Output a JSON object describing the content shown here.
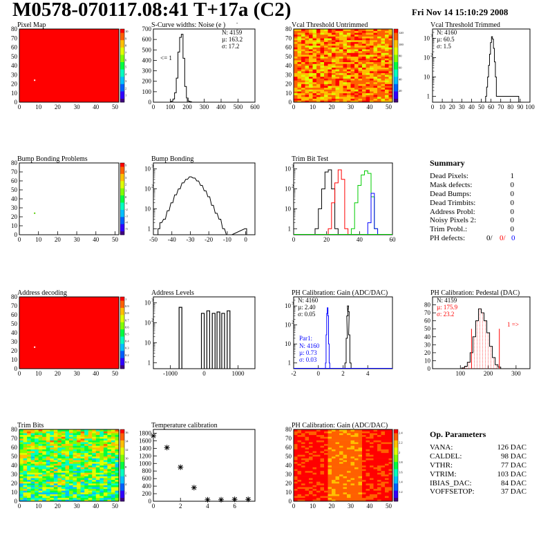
{
  "header": {
    "title": "M0578-070117.08:41 T+17a (C2)",
    "date": "Fri Nov 14 15:10:29 2008"
  },
  "colors": {
    "red": "#ff0000",
    "green": "#00cc00",
    "blue": "#0000ff"
  },
  "chart_data": [
    {
      "id": "pixel-map",
      "type": "heatmap",
      "title": "Pixel Map",
      "fill": "red",
      "xlim": [
        0,
        52
      ],
      "ylim": [
        0,
        80
      ],
      "xticks": [
        0,
        10,
        20,
        30,
        40,
        50
      ],
      "yticks": [
        0,
        10,
        20,
        30,
        40,
        50,
        60,
        70,
        80
      ],
      "zticks": [
        "1",
        "2",
        "3",
        "4",
        "5",
        "6",
        "7",
        "8",
        "9",
        "10"
      ],
      "points": [
        {
          "x": 8,
          "y": 24,
          "color": "white"
        }
      ]
    },
    {
      "id": "scurve-widths",
      "type": "line",
      "title": "S-Curve widths: Noise (e )",
      "xlim": [
        0,
        600
      ],
      "ylim": [
        0,
        700
      ],
      "xticks": [
        0,
        100,
        200,
        300,
        400,
        500,
        600
      ],
      "yticks": [
        0,
        100,
        200,
        300,
        400,
        500,
        600,
        700
      ],
      "stats": [
        "N: 4159",
        "µ:  163.2",
        "σ:  17.2"
      ],
      "note": "<= 1",
      "x": [
        100,
        110,
        120,
        130,
        140,
        150,
        160,
        170,
        180,
        190,
        200,
        210,
        220,
        230
      ],
      "y": [
        0,
        10,
        30,
        90,
        230,
        480,
        620,
        650,
        420,
        150,
        40,
        10,
        5,
        0
      ]
    },
    {
      "id": "vcal-untrimmed",
      "type": "heatmap",
      "title": "Vcal Threshold Untrimmed",
      "fill": "noise-orange",
      "xlim": [
        0,
        52
      ],
      "ylim": [
        0,
        80
      ],
      "xticks": [
        0,
        10,
        20,
        30,
        40,
        50
      ],
      "yticks": [
        0,
        10,
        20,
        30,
        40,
        50,
        60,
        70,
        80
      ],
      "zticks": [
        "20",
        "40",
        "60",
        "80",
        "100",
        "120"
      ]
    },
    {
      "id": "vcal-trimmed",
      "type": "line",
      "title": "Vcal Threshold Trimmed",
      "xlim": [
        0,
        100
      ],
      "ylog": true,
      "ylim": [
        0.5,
        3000
      ],
      "xticks": [
        0,
        10,
        20,
        30,
        40,
        50,
        60,
        70,
        80,
        90,
        100
      ],
      "stats": [
        "N: 4160",
        "µ:  60.5",
        "σ:   1.5"
      ],
      "x": [
        55,
        56,
        57,
        58,
        59,
        60,
        61,
        62,
        63,
        64,
        65,
        66,
        88,
        89
      ],
      "y": [
        1,
        3,
        10,
        40,
        150,
        600,
        1200,
        900,
        300,
        60,
        10,
        1,
        1,
        0
      ]
    },
    {
      "id": "bump-problems",
      "type": "heatmap",
      "title": "Bump Bonding Problems",
      "fill": "white",
      "xlim": [
        0,
        52
      ],
      "ylim": [
        0,
        80
      ],
      "xticks": [
        0,
        10,
        20,
        30,
        40,
        50
      ],
      "yticks": [
        0,
        10,
        20,
        30,
        40,
        50,
        60,
        70,
        80
      ],
      "zticks": [
        "-5",
        "-4",
        "-3",
        "-2",
        "-1",
        "0",
        "1",
        "2",
        "3",
        "4",
        "5"
      ],
      "points": [
        {
          "x": 8,
          "y": 24,
          "color": "#55cc00"
        }
      ]
    },
    {
      "id": "bump-bonding",
      "type": "line",
      "title": "Bump Bonding",
      "xlim": [
        -50,
        5
      ],
      "ylog": true,
      "ylim": [
        0.5,
        2000
      ],
      "xticks": [
        -50,
        -40,
        -30,
        -20,
        -10,
        0
      ],
      "x": [
        -47,
        -46,
        -44,
        -42,
        -40,
        -38,
        -36,
        -34,
        -32,
        -30,
        -28,
        -26,
        -24,
        -22,
        -20,
        -18,
        -16,
        -14,
        -12,
        -10,
        -8,
        0
      ],
      "y": [
        1,
        2,
        3,
        8,
        20,
        50,
        100,
        200,
        300,
        400,
        350,
        250,
        150,
        80,
        40,
        15,
        6,
        3,
        1,
        0,
        0,
        1
      ]
    },
    {
      "id": "trim-bit-test",
      "type": "line",
      "title": "Trim Bit Test",
      "xlim": [
        0,
        60
      ],
      "ylog": true,
      "ylim": [
        0.5,
        2000
      ],
      "xticks": [
        0,
        20,
        40,
        60
      ],
      "series": [
        {
          "color": "black",
          "x": [
            14,
            16,
            18,
            20,
            22,
            24,
            26
          ],
          "y": [
            1,
            10,
            100,
            700,
            900,
            100,
            1
          ]
        },
        {
          "color": "red",
          "x": [
            22,
            24,
            26,
            28,
            30,
            32
          ],
          "y": [
            1,
            20,
            200,
            900,
            300,
            1
          ]
        },
        {
          "color": "green",
          "x": [
            36,
            38,
            40,
            42,
            44,
            46,
            48,
            50
          ],
          "y": [
            1,
            20,
            150,
            500,
            800,
            600,
            40,
            1
          ]
        },
        {
          "color": "blue",
          "x": [
            46,
            48,
            50
          ],
          "y": [
            2,
            60,
            1
          ]
        }
      ]
    },
    {
      "id": "address-decoding",
      "type": "heatmap",
      "title": "Address decoding",
      "fill": "red",
      "xlim": [
        0,
        52
      ],
      "ylim": [
        0,
        80
      ],
      "xticks": [
        0,
        10,
        20,
        30,
        40,
        50
      ],
      "yticks": [
        0,
        10,
        20,
        30,
        40,
        50,
        60,
        70,
        80
      ],
      "zticks": [
        "0.1",
        "0.2",
        "0.3",
        "0.4",
        "0.5",
        "0.6",
        "0.7",
        "0.8",
        "0.9",
        "1"
      ],
      "points": [
        {
          "x": 8,
          "y": 24,
          "color": "white"
        }
      ]
    },
    {
      "id": "address-levels",
      "type": "line",
      "title": "Address Levels",
      "xlim": [
        -1500,
        1500
      ],
      "ylog": true,
      "ylim": [
        0.5,
        2000
      ],
      "xticks": [
        -1000,
        0,
        1000
      ],
      "peaks": [
        -700,
        -40,
        120,
        280,
        420,
        560,
        720
      ],
      "heights": [
        600,
        300,
        400,
        300,
        350,
        300,
        400
      ]
    },
    {
      "id": "ph-gain",
      "type": "line",
      "title": "PH Calibration: Gain (ADC/DAC)",
      "xlim": [
        -2,
        6
      ],
      "ylog": true,
      "ylim": [
        0.5,
        3000
      ],
      "xticks": [
        -2,
        0,
        2,
        4
      ],
      "stats": [
        "N: 4160",
        "µ:  2.40",
        "σ:  0.05"
      ],
      "par_label": "Par1:",
      "par_stats": [
        "N:  4160",
        "µ:  0.73",
        "σ:  0.03"
      ],
      "series": [
        {
          "color": "black",
          "x": [
            2.2,
            2.3,
            2.35,
            2.4,
            2.45,
            2.5,
            2.6
          ],
          "y": [
            1,
            20,
            300,
            1000,
            500,
            30,
            1
          ]
        },
        {
          "color": "blue",
          "x": [
            0.6,
            0.65,
            0.7,
            0.75,
            0.8,
            0.85,
            0.9
          ],
          "y": [
            1,
            30,
            400,
            800,
            300,
            10,
            1
          ]
        }
      ]
    },
    {
      "id": "ph-pedestal",
      "type": "line",
      "title": "PH Calibration: Pedestal (DAC)",
      "xlim": [
        0,
        350
      ],
      "ylim": [
        0,
        90
      ],
      "xticks": [
        100,
        200,
        300
      ],
      "yticks": [
        0,
        10,
        20,
        30,
        40,
        50,
        60,
        70,
        80
      ],
      "stats": [
        "N: 4159",
        "µ:  175.9",
        "σ:  23.2"
      ],
      "note": "1 =>",
      "x": [
        110,
        120,
        130,
        140,
        150,
        160,
        170,
        180,
        190,
        200,
        210,
        220,
        230,
        240,
        250
      ],
      "y": [
        1,
        3,
        8,
        20,
        40,
        60,
        75,
        70,
        60,
        45,
        28,
        14,
        5,
        2,
        0
      ]
    },
    {
      "id": "trim-bits",
      "type": "heatmap",
      "title": "Trim Bits",
      "fill": "noise-green",
      "xlim": [
        0,
        52
      ],
      "ylim": [
        0,
        80
      ],
      "xticks": [
        0,
        10,
        20,
        30,
        40,
        50
      ],
      "yticks": [
        0,
        10,
        20,
        30,
        40,
        50,
        60,
        70,
        80
      ],
      "zticks": [
        "2",
        "4",
        "6",
        "8",
        "10",
        "12",
        "14",
        "16"
      ]
    },
    {
      "id": "temperature-calibration",
      "type": "scatter",
      "title": "Temperature calibration",
      "xlim": [
        0,
        7.5
      ],
      "ylim": [
        0,
        1900
      ],
      "xticks": [
        0,
        2,
        4,
        6
      ],
      "yticks": [
        0,
        200,
        400,
        600,
        800,
        1000,
        1200,
        1400,
        1600,
        1800
      ],
      "x": [
        0,
        1,
        2,
        3,
        4,
        5,
        6,
        7
      ],
      "y": [
        1730,
        1420,
        900,
        360,
        40,
        40,
        50,
        50
      ]
    },
    {
      "id": "ph-gain-map",
      "type": "heatmap",
      "title": "PH Calibration: Gain (ADC/DAC)",
      "fill": "noise-red",
      "xlim": [
        0,
        52
      ],
      "ylim": [
        0,
        80
      ],
      "xticks": [
        0,
        10,
        20,
        30,
        40,
        50
      ],
      "yticks": [
        0,
        10,
        20,
        30,
        40,
        50,
        60,
        70,
        80
      ],
      "zticks": [
        "1.2",
        "1.4",
        "1.6",
        "1.8",
        "2",
        "2.2",
        "2.4"
      ]
    }
  ],
  "summary": {
    "title": "Summary",
    "rows": [
      {
        "label": "Dead Pixels:",
        "value": "1"
      },
      {
        "label": "Mask defects:",
        "value": "0"
      },
      {
        "label": "Dead Bumps:",
        "value": "0"
      },
      {
        "label": "Dead Trimbits:",
        "value": "0"
      },
      {
        "label": "Address Probl:",
        "value": "0"
      },
      {
        "label": "Noisy Pixels 2:",
        "value": "0"
      },
      {
        "label": "Trim Probl.:",
        "value": "0"
      }
    ],
    "ph_label": "PH defects:",
    "ph_black": "0/",
    "ph_red": "0/",
    "ph_blue": "0"
  },
  "op_params": {
    "title": "Op. Parameters",
    "rows": [
      {
        "label": "VANA:",
        "value": "126 DAC"
      },
      {
        "label": "CALDEL:",
        "value": "98 DAC"
      },
      {
        "label": "VTHR:",
        "value": "77 DAC"
      },
      {
        "label": "VTRIM:",
        "value": "103 DAC"
      },
      {
        "label": "IBIAS_DAC:",
        "value": "84 DAC"
      },
      {
        "label": "VOFFSETOP:",
        "value": "37 DAC"
      }
    ]
  }
}
